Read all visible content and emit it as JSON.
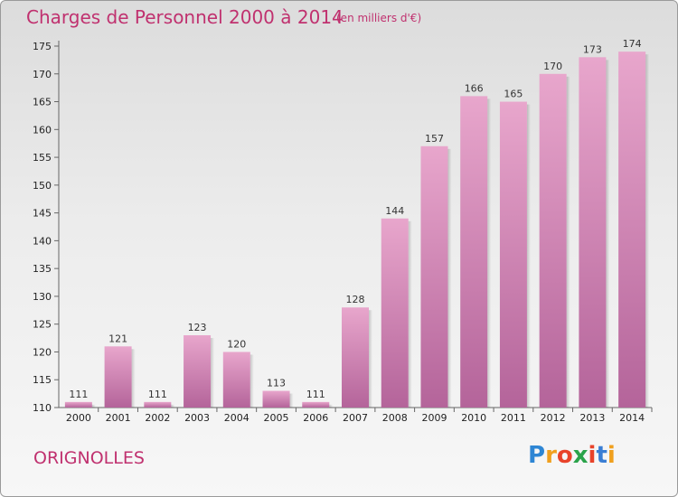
{
  "title": "Charges de Personnel 2000 à 2014",
  "subtitle": "(en milliers d'€)",
  "commune": "ORIGNOLLES",
  "logo": {
    "letters": [
      "P",
      "r",
      "o",
      "x",
      "i",
      "t",
      "i"
    ],
    "colors": [
      "#2e86d4",
      "#f0a01e",
      "#e8432a",
      "#2aa34a",
      "#e8432a",
      "#3a7ed4",
      "#f0a01e"
    ]
  },
  "colors": {
    "bar_top": "#e8a6cc",
    "bar_bottom": "#b4649a",
    "accent": "#c0316f"
  },
  "chart_data": {
    "type": "bar",
    "title": "Charges de Personnel 2000 à 2014",
    "subtitle": "(en milliers d'€)",
    "categories": [
      "2000",
      "2001",
      "2002",
      "2003",
      "2004",
      "2005",
      "2006",
      "2007",
      "2008",
      "2009",
      "2010",
      "2011",
      "2012",
      "2013",
      "2014"
    ],
    "values": [
      111,
      121,
      111,
      123,
      120,
      113,
      111,
      128,
      144,
      157,
      166,
      165,
      170,
      173,
      174
    ],
    "ylim": [
      110,
      175
    ],
    "yticks": [
      110,
      115,
      120,
      125,
      130,
      135,
      140,
      145,
      150,
      155,
      160,
      165,
      170,
      175
    ],
    "grid": false
  }
}
